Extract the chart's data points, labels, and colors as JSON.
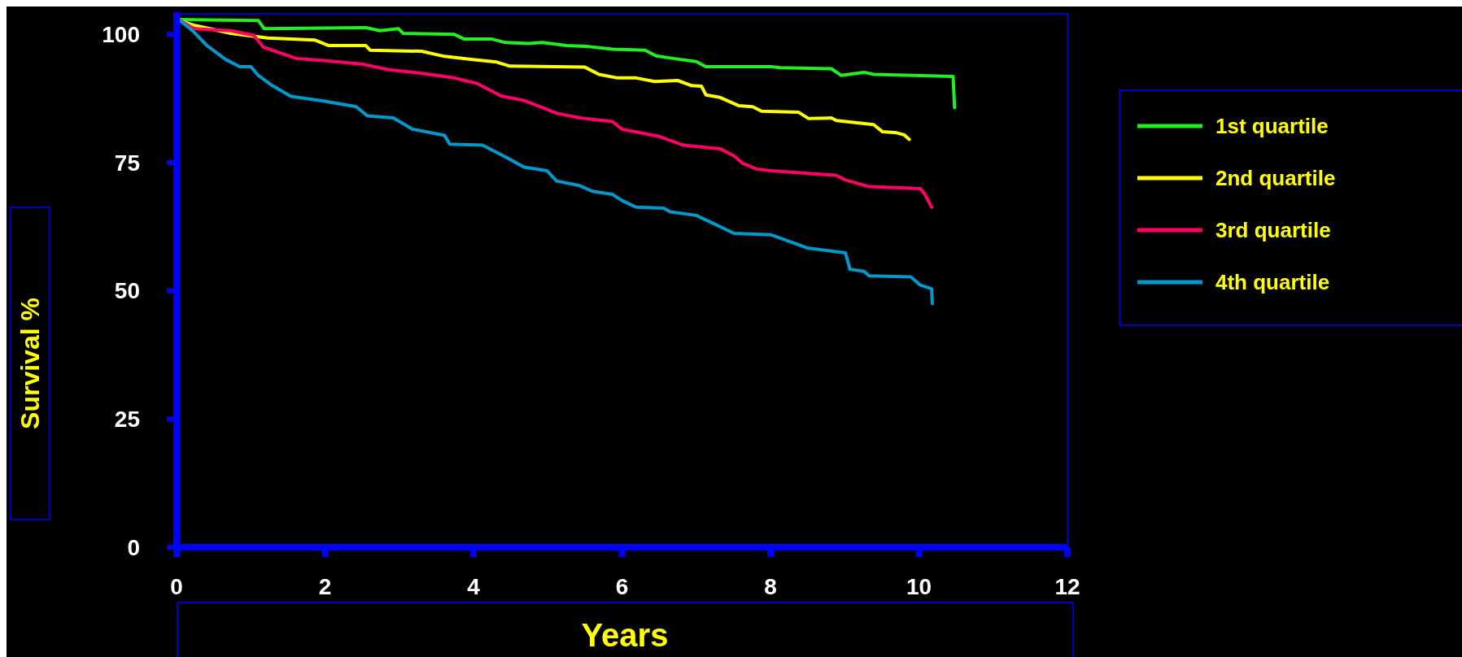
{
  "chart_data": {
    "type": "line",
    "xlabel": "Years",
    "ylabel": "Survival %",
    "xlim": [
      0,
      12
    ],
    "xticks": [
      0,
      2,
      4,
      6,
      8,
      10,
      12
    ],
    "ylim": [
      0,
      104
    ],
    "yticks": [
      0,
      25,
      50,
      75,
      100
    ],
    "legend": "right",
    "series": [
      {
        "name": "1st quartile",
        "color": "#22ee22",
        "x": [
          0.03,
          1.1,
          1.18,
          2.55,
          2.74,
          2.99,
          3.05,
          3.74,
          3.87,
          4.24,
          4.43,
          4.74,
          4.93,
          5.25,
          5.56,
          5.87,
          6.31,
          6.46,
          6.69,
          7.0,
          7.13,
          8.01,
          8.13,
          8.82,
          8.95,
          9.26,
          9.39,
          10.46,
          10.48
        ],
        "values": [
          102.9,
          102.7,
          101.1,
          101.3,
          100.7,
          101.1,
          100.2,
          100.0,
          99.1,
          99.1,
          98.4,
          98.2,
          98.4,
          97.8,
          97.6,
          97.1,
          96.9,
          95.8,
          95.3,
          94.7,
          93.7,
          93.7,
          93.5,
          93.3,
          92.0,
          92.6,
          92.2,
          91.8,
          85.7
        ]
      },
      {
        "name": "2nd quartile",
        "color": "#ffff00",
        "x": [
          0.03,
          0.23,
          0.73,
          1.23,
          1.86,
          2.05,
          2.55,
          2.61,
          3.3,
          3.61,
          3.99,
          4.31,
          4.49,
          5.5,
          5.69,
          5.94,
          6.19,
          6.44,
          6.75,
          6.94,
          7.07,
          7.13,
          7.32,
          7.57,
          7.76,
          7.88,
          8.38,
          8.51,
          8.82,
          8.89,
          9.39,
          9.51,
          9.7,
          9.8,
          9.87
        ],
        "values": [
          102.7,
          101.8,
          100.2,
          99.3,
          98.9,
          97.8,
          97.8,
          96.9,
          96.7,
          95.7,
          95.1,
          94.6,
          93.8,
          93.6,
          92.2,
          91.5,
          91.5,
          90.8,
          91.0,
          90.0,
          89.9,
          88.2,
          87.7,
          86.1,
          85.9,
          85.0,
          84.8,
          83.6,
          83.7,
          83.2,
          82.4,
          81.0,
          80.8,
          80.4,
          79.5
        ]
      },
      {
        "name": "3rd quartile",
        "color": "#ff0066",
        "x": [
          0.03,
          0.23,
          0.73,
          1.04,
          1.17,
          1.61,
          1.98,
          2.49,
          2.86,
          3.3,
          3.74,
          4.05,
          4.37,
          4.68,
          4.93,
          5.12,
          5.43,
          5.87,
          6.0,
          6.5,
          6.82,
          7.32,
          7.51,
          7.63,
          7.82,
          8.01,
          8.89,
          9.01,
          9.33,
          10.02,
          10.08,
          10.17
        ],
        "values": [
          102.9,
          101.1,
          100.7,
          99.8,
          97.5,
          95.3,
          94.9,
          94.2,
          93.1,
          92.4,
          91.5,
          90.4,
          88.0,
          87.1,
          85.7,
          84.6,
          83.7,
          83.0,
          81.5,
          80.1,
          78.4,
          77.7,
          76.3,
          74.8,
          73.7,
          73.4,
          72.5,
          71.6,
          70.3,
          69.9,
          68.8,
          66.3
        ]
      },
      {
        "name": "4th quartile",
        "color": "#0099cc",
        "x": [
          0.03,
          0.23,
          0.41,
          0.66,
          0.85,
          1.0,
          1.1,
          1.29,
          1.54,
          1.98,
          2.42,
          2.57,
          2.92,
          3.18,
          3.61,
          3.68,
          4.12,
          4.43,
          4.68,
          4.99,
          5.12,
          5.43,
          5.6,
          5.87,
          6.0,
          6.19,
          6.56,
          6.65,
          7.0,
          7.51,
          8.01,
          8.51,
          9.01,
          9.07,
          9.26,
          9.33,
          9.89,
          10.02,
          10.17,
          10.18
        ],
        "values": [
          102.9,
          100.5,
          97.8,
          95.1,
          93.7,
          93.7,
          92.0,
          90.0,
          87.9,
          87.0,
          85.9,
          84.1,
          83.7,
          81.5,
          80.3,
          78.6,
          78.4,
          76.1,
          74.1,
          73.4,
          71.4,
          70.5,
          69.4,
          68.8,
          67.6,
          66.3,
          66.1,
          65.4,
          64.7,
          61.2,
          60.9,
          58.3,
          57.4,
          54.2,
          53.8,
          52.9,
          52.7,
          51.1,
          50.4,
          47.5
        ]
      }
    ]
  }
}
